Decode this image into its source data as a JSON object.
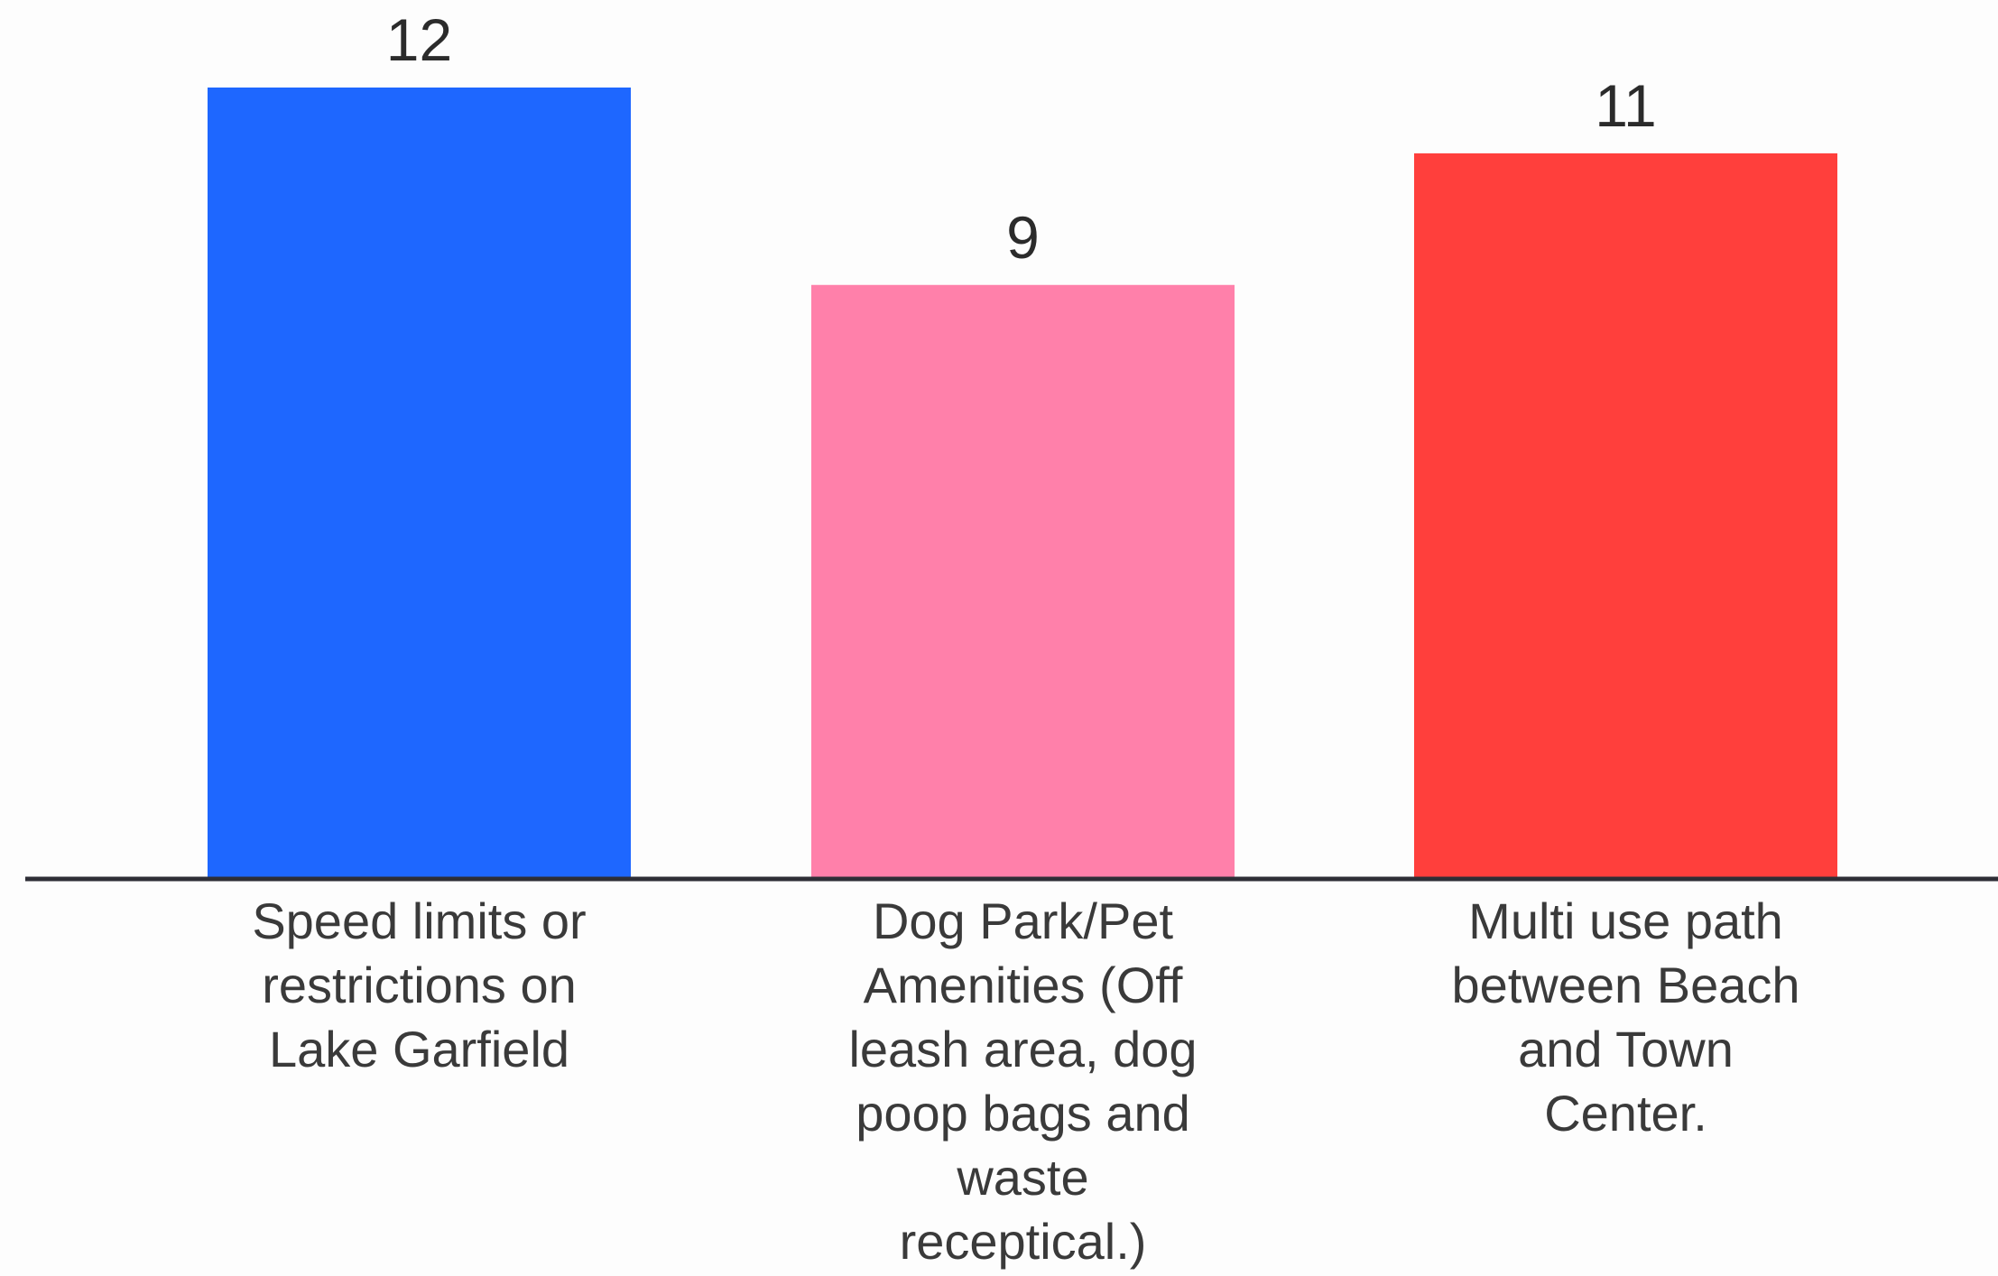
{
  "chart_data": {
    "type": "bar",
    "title": "",
    "xlabel": "",
    "ylabel": "",
    "ylim": [
      0,
      12
    ],
    "grid": false,
    "legend": "none",
    "categories": [
      "Speed limits or restrictions on Lake Garfield",
      "Dog Park/Pet Amenities (Off leash area, dog poop bags and waste receptical.)",
      "Multi use path between Beach and Town Center."
    ],
    "category_lines": [
      [
        "Speed limits or",
        "restrictions on",
        "Lake Garfield"
      ],
      [
        "Dog Park/Pet",
        "Amenities (Off",
        "leash area, dog",
        "poop bags and",
        "waste",
        "receptical.)"
      ],
      [
        "Multi use path",
        "between Beach",
        "and Town",
        "Center."
      ]
    ],
    "values": [
      12,
      9,
      11
    ],
    "colors": [
      "#1e67ff",
      "#ff80aa",
      "#ff3f3c"
    ],
    "value_labels": [
      "12",
      "9",
      "11"
    ]
  }
}
